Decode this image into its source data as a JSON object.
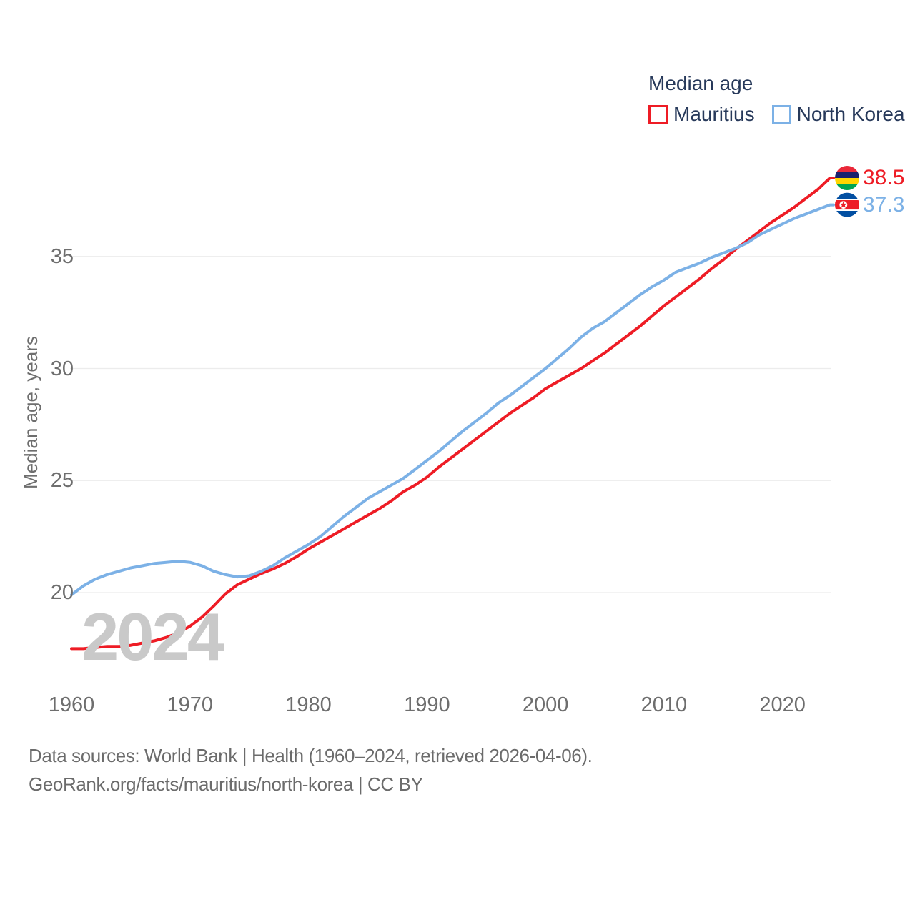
{
  "legend": {
    "title": "Median age",
    "items": [
      {
        "label": "Mauritius",
        "color": "#ee1c25"
      },
      {
        "label": "North Korea",
        "color": "#7cb1e6"
      }
    ]
  },
  "y_axis": {
    "title": "Median age, years",
    "ticks": [
      "20",
      "25",
      "30",
      "35"
    ]
  },
  "x_axis": {
    "ticks": [
      "1960",
      "1970",
      "1980",
      "1990",
      "2000",
      "2010",
      "2020"
    ]
  },
  "watermark": "2024",
  "footer": {
    "line1": "Data sources: World Bank | Health (1960–2024, retrieved 2026-04-06).",
    "line2": "GeoRank.org/facts/mauritius/north-korea | CC BY"
  },
  "colors": {
    "mauritius_line": "#ee1c25",
    "north_korea_line": "#7cb1e6",
    "legend_text": "#27395a",
    "axis_text": "#6e6e6e",
    "gridline": "#ececec",
    "watermark": "#c9c9c9",
    "footer_text": "#6b6b6b"
  },
  "chart_data": {
    "type": "line",
    "title": "Median age",
    "xlabel": "",
    "ylabel": "Median age, years",
    "xlim": [
      1960,
      2024
    ],
    "ylim": [
      16.5,
      39.5
    ],
    "yticks": [
      20,
      25,
      30,
      35
    ],
    "xticks": [
      1960,
      1970,
      1980,
      1990,
      2000,
      2010,
      2020
    ],
    "grid": "horizontal",
    "legend_position": "top-right",
    "x": [
      1960,
      1961,
      1962,
      1963,
      1964,
      1965,
      1966,
      1967,
      1968,
      1969,
      1970,
      1971,
      1972,
      1973,
      1974,
      1975,
      1976,
      1977,
      1978,
      1979,
      1980,
      1981,
      1982,
      1983,
      1984,
      1985,
      1986,
      1987,
      1988,
      1989,
      1990,
      1991,
      1992,
      1993,
      1994,
      1995,
      1996,
      1997,
      1998,
      1999,
      2000,
      2001,
      2002,
      2003,
      2004,
      2005,
      2006,
      2007,
      2008,
      2009,
      2010,
      2011,
      2012,
      2013,
      2014,
      2015,
      2016,
      2017,
      2018,
      2019,
      2020,
      2021,
      2022,
      2023,
      2024
    ],
    "series": [
      {
        "name": "Mauritius",
        "color": "#ee1c25",
        "end_label": "38.5",
        "end_value": 38.5,
        "values": [
          17.5,
          17.5,
          17.55,
          17.6,
          17.6,
          17.65,
          17.75,
          17.85,
          18.0,
          18.2,
          18.5,
          18.9,
          19.4,
          19.95,
          20.35,
          20.6,
          20.85,
          21.05,
          21.3,
          21.6,
          21.95,
          22.25,
          22.55,
          22.85,
          23.15,
          23.45,
          23.75,
          24.1,
          24.5,
          24.8,
          25.15,
          25.6,
          26.0,
          26.4,
          26.8,
          27.2,
          27.6,
          28.0,
          28.35,
          28.7,
          29.1,
          29.4,
          29.7,
          30.0,
          30.35,
          30.7,
          31.1,
          31.5,
          31.9,
          32.35,
          32.8,
          33.2,
          33.6,
          34.0,
          34.45,
          34.85,
          35.3,
          35.7,
          36.1,
          36.5,
          36.85,
          37.2,
          37.6,
          38.0,
          38.5
        ]
      },
      {
        "name": "North Korea",
        "color": "#7cb1e6",
        "end_label": "37.3",
        "end_value": 37.3,
        "values": [
          19.9,
          20.3,
          20.6,
          20.8,
          20.95,
          21.1,
          21.2,
          21.3,
          21.35,
          21.4,
          21.35,
          21.2,
          20.95,
          20.8,
          20.7,
          20.75,
          20.95,
          21.2,
          21.55,
          21.85,
          22.15,
          22.5,
          22.95,
          23.4,
          23.8,
          24.2,
          24.5,
          24.8,
          25.1,
          25.5,
          25.9,
          26.3,
          26.75,
          27.2,
          27.6,
          28.0,
          28.45,
          28.8,
          29.2,
          29.6,
          30.0,
          30.45,
          30.9,
          31.4,
          31.8,
          32.1,
          32.5,
          32.9,
          33.3,
          33.65,
          33.95,
          34.3,
          34.5,
          34.7,
          34.95,
          35.15,
          35.35,
          35.6,
          35.95,
          36.2,
          36.45,
          36.7,
          36.9,
          37.1,
          37.3
        ]
      }
    ]
  }
}
